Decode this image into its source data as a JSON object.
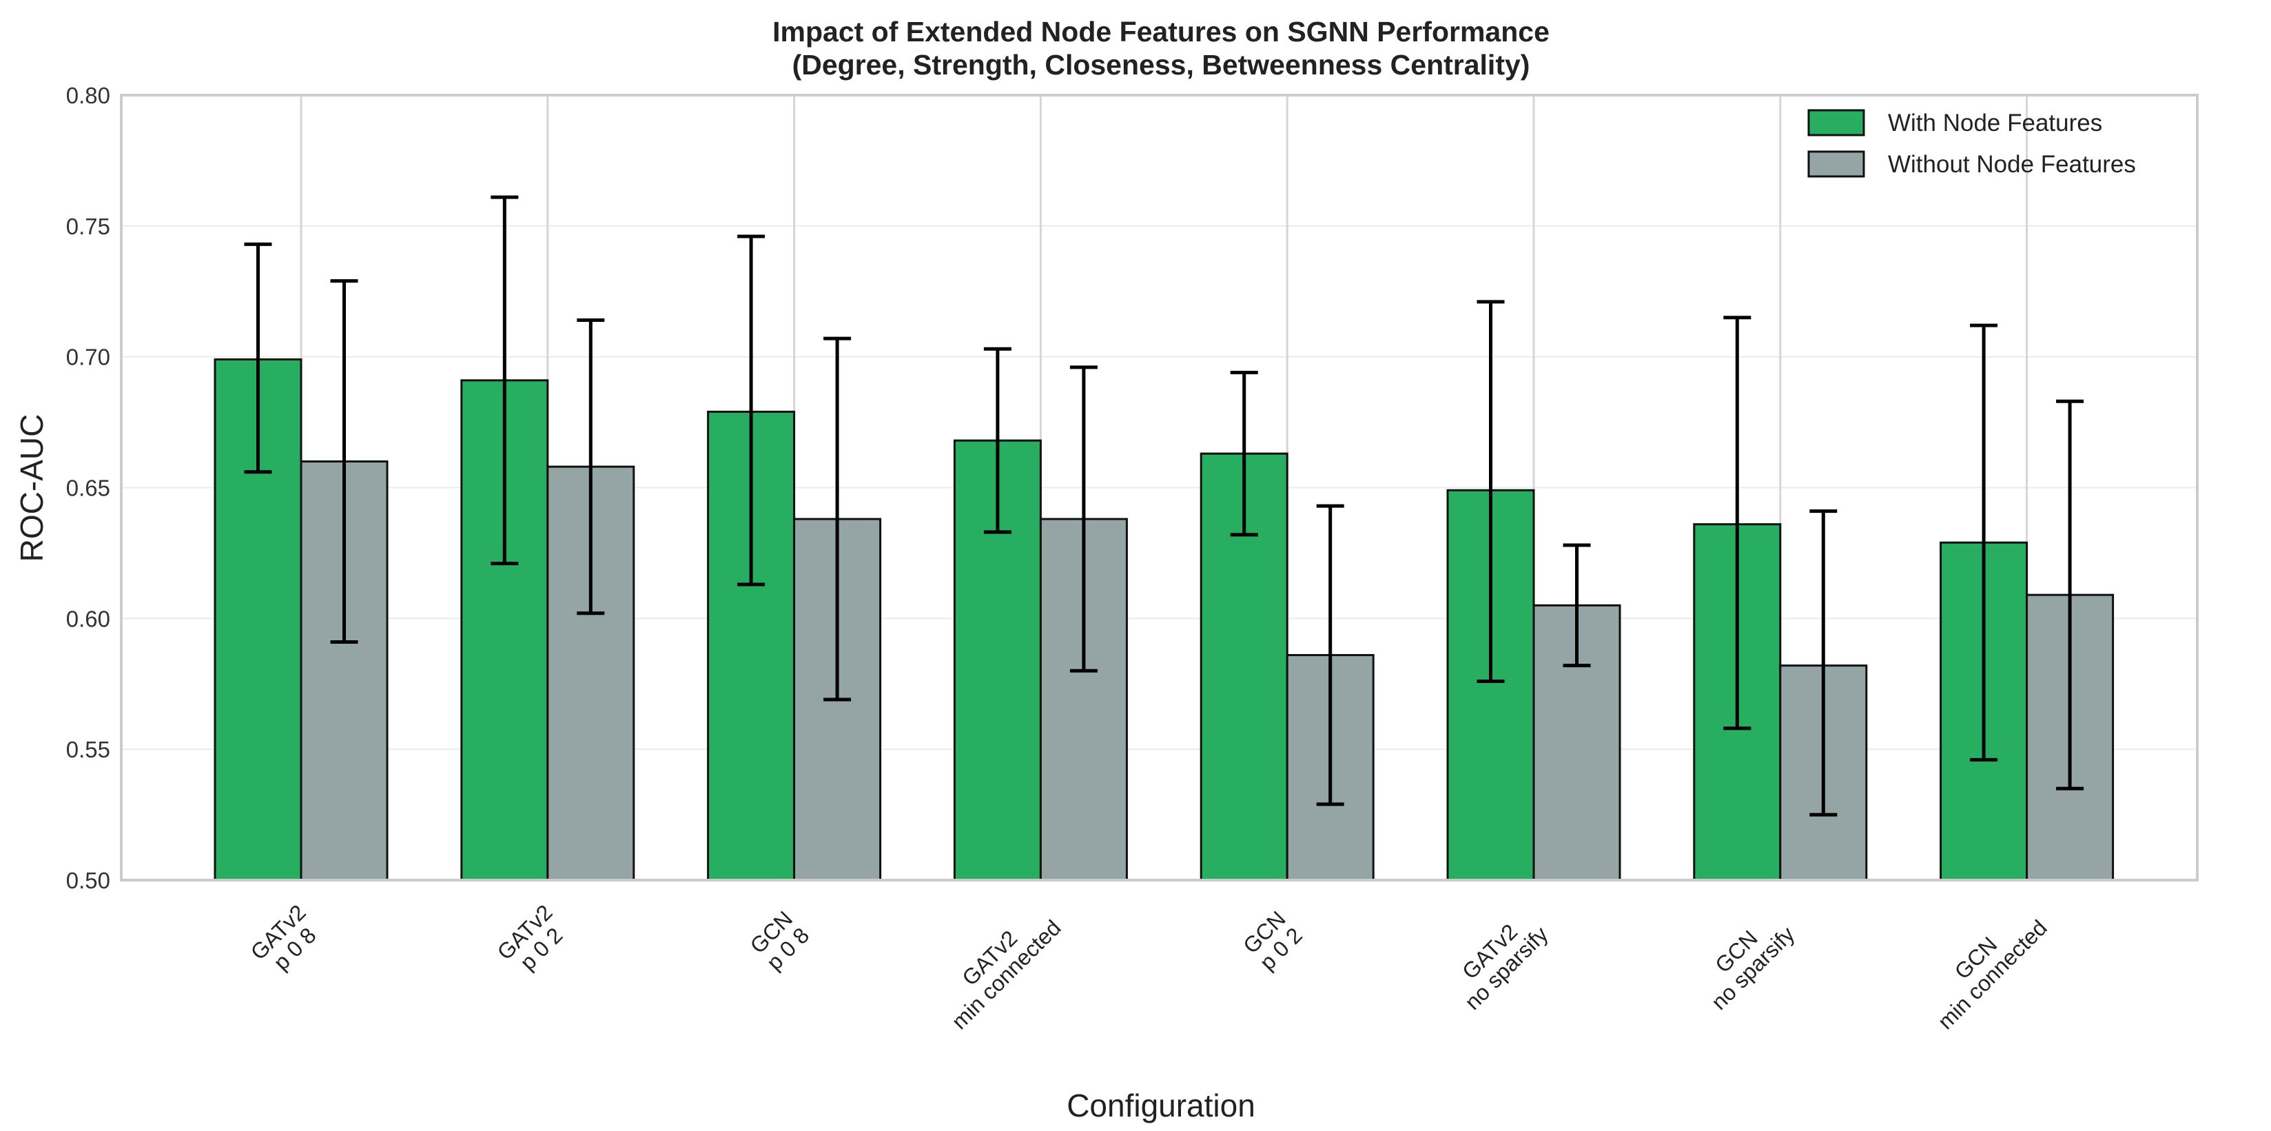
{
  "chart_data": {
    "type": "bar",
    "title": "Impact of Extended Node Features on SGNN Performance",
    "subtitle": "(Degree, Strength, Closeness, Betweenness Centrality)",
    "xlabel": "Configuration",
    "ylabel": "ROC-AUC",
    "ylim": [
      0.5,
      0.8
    ],
    "yticks": [
      0.5,
      0.55,
      0.6,
      0.65,
      0.7,
      0.75,
      0.8
    ],
    "ytick_labels": [
      "0.50",
      "0.55",
      "0.60",
      "0.65",
      "0.70",
      "0.75",
      "0.80"
    ],
    "grid": true,
    "legend_position": "top-right",
    "categories": [
      [
        "GATv2",
        "p 0 8"
      ],
      [
        "GATv2",
        "p 0 2"
      ],
      [
        "GCN",
        "p 0 8"
      ],
      [
        "GATv2",
        "min connected"
      ],
      [
        "GCN",
        "p 0 2"
      ],
      [
        "GATv2",
        "no sparsify"
      ],
      [
        "GCN",
        "no sparsify"
      ],
      [
        "GCN",
        "min connected"
      ]
    ],
    "series": [
      {
        "name": "With Node Features",
        "color": "#27ae60",
        "values": [
          0.699,
          0.691,
          0.679,
          0.668,
          0.663,
          0.649,
          0.636,
          0.629
        ],
        "err_low": [
          0.656,
          0.621,
          0.613,
          0.633,
          0.632,
          0.576,
          0.558,
          0.546
        ],
        "err_high": [
          0.743,
          0.761,
          0.746,
          0.703,
          0.694,
          0.721,
          0.715,
          0.712
        ]
      },
      {
        "name": "Without Node Features",
        "color": "#95a5a6",
        "values": [
          0.66,
          0.658,
          0.638,
          0.638,
          0.586,
          0.605,
          0.582,
          0.609
        ],
        "err_low": [
          0.591,
          0.602,
          0.569,
          0.58,
          0.529,
          0.582,
          0.525,
          0.535
        ],
        "err_high": [
          0.729,
          0.714,
          0.707,
          0.696,
          0.643,
          0.628,
          0.641,
          0.683
        ]
      }
    ]
  }
}
